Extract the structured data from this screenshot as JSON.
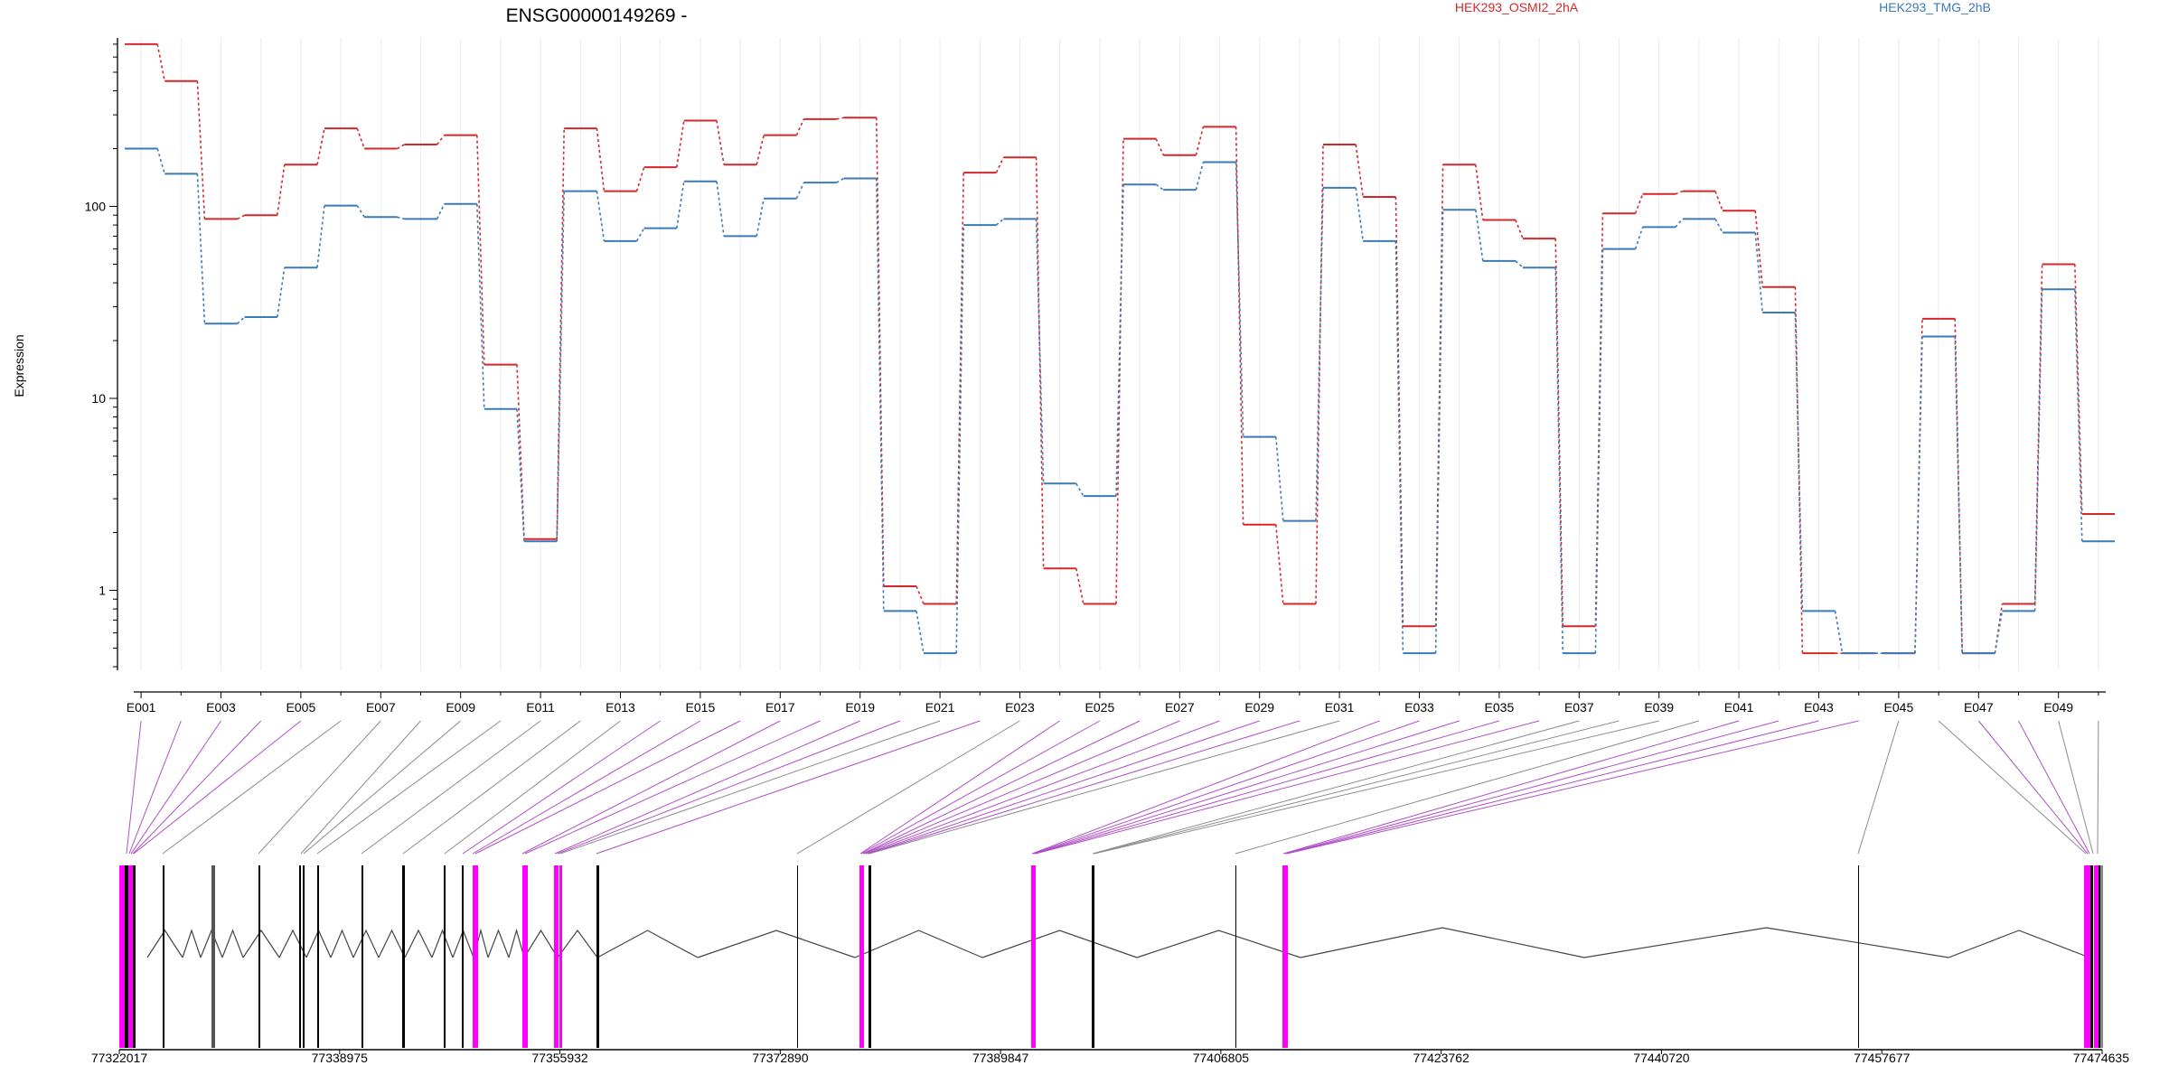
{
  "chart_data": {
    "type": "line",
    "title": "ENSG00000149269 -",
    "ylabel": "Expression",
    "yscale": "log",
    "ylim": [
      0.4,
      1000
    ],
    "yticks": [
      "1",
      "10",
      "100"
    ],
    "legend_placement": "top",
    "series": [
      {
        "name": "HEK293_OSMI2_2hA",
        "color": "#d62728",
        "values": [
          700,
          450,
          86,
          90,
          165,
          255,
          200,
          210,
          235,
          15,
          1.85,
          255,
          120,
          160,
          280,
          165,
          235,
          285,
          290,
          1.05,
          0.85,
          150,
          180,
          1.3,
          0.85,
          225,
          185,
          260,
          2.2,
          0.85,
          210,
          112,
          0.65,
          165,
          85,
          68,
          0.65,
          92,
          116,
          120,
          95,
          38,
          0.47,
          0.47,
          0.47,
          26,
          0.47,
          0.85,
          50,
          2.5
        ]
      },
      {
        "name": "HEK293_TMG_2hB",
        "color": "#3b7ab8",
        "values": [
          200,
          148,
          24.5,
          26.5,
          48,
          101,
          88,
          86,
          103,
          8.8,
          1.8,
          120,
          66,
          77,
          135,
          70,
          110,
          133,
          140,
          0.78,
          0.47,
          80,
          86,
          3.6,
          3.1,
          130,
          122,
          170,
          6.3,
          2.3,
          125,
          66,
          0.47,
          96,
          52,
          48,
          0.47,
          60,
          78,
          86,
          73,
          28,
          0.78,
          0.47,
          0.47,
          21,
          0.47,
          0.78,
          37,
          1.8
        ]
      }
    ],
    "exon_labels": [
      "E001",
      "E003",
      "E005",
      "E007",
      "E009",
      "E011",
      "E013",
      "E015",
      "E017",
      "E019",
      "E021",
      "E023",
      "E025",
      "E027",
      "E029",
      "E031",
      "E033",
      "E035",
      "E037",
      "E039",
      "E041",
      "E043",
      "E045",
      "E047",
      "E049"
    ],
    "genome_ticks": [
      "77322017",
      "77338975",
      "77355932",
      "77372890",
      "77389847",
      "77406805",
      "77423762",
      "77440720",
      "77457677",
      "77474635"
    ],
    "genome_range": [
      77322017,
      77474635
    ],
    "exon_highlight_color": "#ff00ff"
  }
}
